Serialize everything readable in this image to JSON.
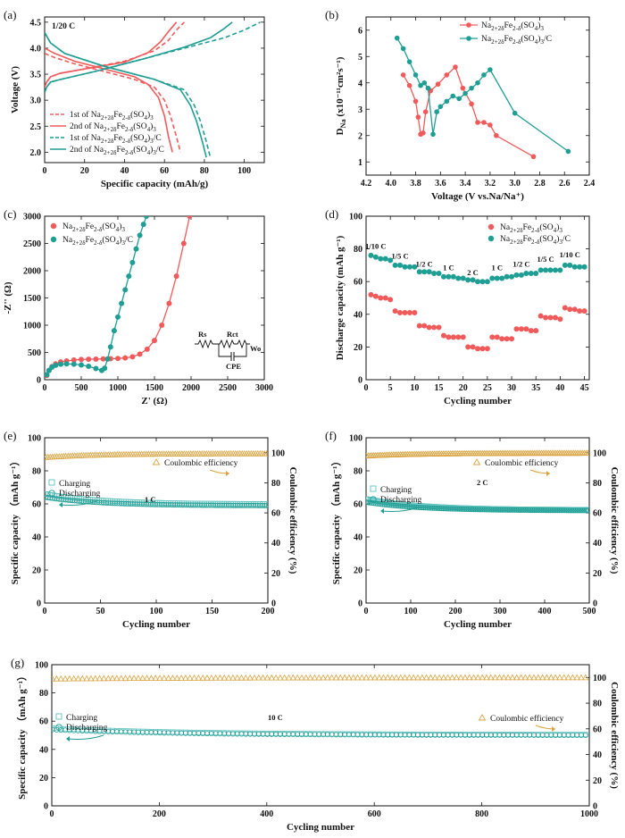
{
  "colors": {
    "red": "#f05a5a",
    "teal": "#1f9e94",
    "gold": "#d9a441",
    "lightteal": "#5fc2c0",
    "text": "#111111"
  },
  "chart_data": [
    {
      "id": "a",
      "panel_label": "(a)",
      "type": "line",
      "annotation": "1/20 C",
      "xlabel": "Specific capacity (mAh/g)",
      "ylabel": "Voltage (V)",
      "xlim": [
        0,
        110
      ],
      "ylim": [
        1.8,
        4.6
      ],
      "xticks": [
        0,
        20,
        40,
        60,
        80,
        100
      ],
      "yticks": [
        2.0,
        2.5,
        3.0,
        3.5,
        4.0,
        4.5
      ],
      "legend_position": "bottom-left",
      "series": [
        {
          "name": "1st of Na2+2δFe2-δ(SO4)3",
          "color": "#f05a5a",
          "dash": true,
          "legend": true,
          "x": [
            0,
            1,
            3,
            8,
            20,
            40,
            55,
            62,
            66,
            70
          ],
          "y": [
            3.25,
            3.35,
            3.45,
            3.52,
            3.6,
            3.75,
            3.95,
            4.15,
            4.35,
            4.5
          ]
        },
        {
          "name": "",
          "color": "#f05a5a",
          "dash": true,
          "legend": false,
          "x": [
            0,
            5,
            15,
            30,
            45,
            55,
            60,
            63,
            66,
            68
          ],
          "y": [
            3.9,
            3.82,
            3.7,
            3.55,
            3.4,
            3.25,
            3.0,
            2.7,
            2.3,
            2.0
          ]
        },
        {
          "name": "2nd of Na2+2δFe2-δ(SO4)3",
          "color": "#f05a5a",
          "dash": false,
          "legend": true,
          "x": [
            0,
            1,
            3,
            8,
            20,
            40,
            52,
            58,
            62,
            66
          ],
          "y": [
            3.25,
            3.35,
            3.45,
            3.52,
            3.6,
            3.73,
            3.92,
            4.12,
            4.32,
            4.5
          ]
        },
        {
          "name": "",
          "color": "#f05a5a",
          "dash": false,
          "legend": false,
          "x": [
            0,
            5,
            15,
            30,
            45,
            52,
            57,
            60,
            62,
            64
          ],
          "y": [
            4.0,
            3.9,
            3.75,
            3.6,
            3.45,
            3.3,
            3.05,
            2.7,
            2.3,
            2.0
          ]
        },
        {
          "name": "1st of Na2+2δFe2-δ(SO4)3/C",
          "color": "#1f9e94",
          "dash": true,
          "legend": true,
          "x": [
            0,
            1,
            3,
            8,
            25,
            50,
            75,
            90,
            100,
            108
          ],
          "y": [
            3.15,
            3.25,
            3.35,
            3.4,
            3.55,
            3.8,
            4.05,
            4.2,
            4.35,
            4.5
          ]
        },
        {
          "name": "",
          "color": "#1f9e94",
          "dash": true,
          "legend": false,
          "x": [
            0,
            3,
            10,
            30,
            55,
            70,
            75,
            78,
            81,
            83
          ],
          "y": [
            4.3,
            4.1,
            3.9,
            3.65,
            3.4,
            3.2,
            2.9,
            2.6,
            2.2,
            1.9
          ]
        },
        {
          "name": "2nd of Na2+2δFe2-δ(SO4)3/C",
          "color": "#1f9e94",
          "dash": false,
          "legend": true,
          "x": [
            0,
            1,
            3,
            8,
            25,
            50,
            70,
            83,
            90,
            94
          ],
          "y": [
            3.15,
            3.25,
            3.35,
            3.4,
            3.55,
            3.8,
            4.02,
            4.2,
            4.38,
            4.5
          ]
        },
        {
          "name": "",
          "color": "#1f9e94",
          "dash": false,
          "legend": false,
          "x": [
            0,
            3,
            10,
            30,
            55,
            68,
            73,
            76,
            79,
            81
          ],
          "y": [
            4.3,
            4.1,
            3.9,
            3.65,
            3.4,
            3.2,
            2.9,
            2.6,
            2.2,
            1.9
          ]
        }
      ]
    },
    {
      "id": "b",
      "panel_label": "(b)",
      "type": "line",
      "xlabel": "Voltage (V vs.Na/Na⁺)",
      "ylabel": "D_Na (x10⁻¹¹cm²s⁻¹)",
      "xlim": [
        4.2,
        2.4
      ],
      "ylim": [
        0.5,
        6.5
      ],
      "xticks": [
        4.2,
        4.0,
        3.8,
        3.6,
        3.4,
        3.2,
        3.0,
        2.8,
        2.6,
        2.4
      ],
      "yticks": [
        1,
        2,
        3,
        4,
        5,
        6
      ],
      "legend_position": "top-right",
      "markers": "circle",
      "series": [
        {
          "name": "Na2+2δFe2-δ(SO4)3",
          "color": "#f05a5a",
          "x": [
            3.9,
            3.85,
            3.8,
            3.78,
            3.76,
            3.74,
            3.72,
            3.68,
            3.62,
            3.55,
            3.48,
            3.42,
            3.35,
            3.3,
            3.25,
            3.2,
            3.15,
            2.85
          ],
          "y": [
            4.3,
            3.9,
            3.3,
            2.7,
            2.05,
            2.1,
            2.9,
            3.7,
            3.95,
            4.3,
            4.6,
            3.8,
            3.2,
            2.5,
            2.5,
            2.4,
            2.0,
            1.2
          ]
        },
        {
          "name": "Na2+2δFe2-δ(SO4)3/C",
          "color": "#1f9e94",
          "x": [
            3.95,
            3.9,
            3.85,
            3.8,
            3.76,
            3.73,
            3.7,
            3.66,
            3.63,
            3.6,
            3.55,
            3.5,
            3.45,
            3.4,
            3.35,
            3.3,
            3.25,
            3.2,
            3.0,
            2.57
          ],
          "y": [
            5.7,
            5.3,
            4.8,
            4.3,
            3.9,
            4.0,
            3.8,
            2.05,
            2.9,
            3.1,
            3.3,
            3.5,
            3.4,
            3.6,
            3.8,
            4.0,
            4.3,
            4.5,
            2.85,
            1.4
          ]
        }
      ]
    },
    {
      "id": "c",
      "panel_label": "(c)",
      "type": "scatter",
      "xlabel": "Z' (Ω)",
      "ylabel": "-Z'' (Ω)",
      "xlim": [
        0,
        3000
      ],
      "ylim": [
        0,
        3000
      ],
      "xticks": [
        0,
        500,
        1000,
        1500,
        2000,
        2500,
        3000
      ],
      "yticks": [
        0,
        500,
        1000,
        1500,
        2000,
        2500,
        3000
      ],
      "legend_position": "top-left",
      "markers": "circle",
      "circuit_labels": {
        "rs": "Rs",
        "rct": "Rct",
        "cpe": "CPE",
        "wo": "Wo"
      },
      "series": [
        {
          "name": "Na2+2δFe2-δ(SO4)3",
          "color": "#f05a5a",
          "x": [
            30,
            60,
            100,
            150,
            220,
            300,
            400,
            500,
            600,
            700,
            800,
            900,
            1000,
            1100,
            1200,
            1300,
            1400,
            1500,
            1600,
            1700,
            1800,
            1900,
            1980
          ],
          "y": [
            80,
            170,
            240,
            290,
            325,
            345,
            360,
            370,
            375,
            378,
            382,
            385,
            390,
            400,
            420,
            470,
            560,
            720,
            1000,
            1400,
            1900,
            2500,
            3000
          ]
        },
        {
          "name": "Na2+2δFe2-δ(SO4)3/C",
          "color": "#1f9e94",
          "x": [
            30,
            60,
            100,
            150,
            220,
            300,
            400,
            500,
            600,
            700,
            780,
            820,
            860,
            900,
            950,
            1000,
            1050,
            1100,
            1150,
            1200,
            1250,
            1300,
            1350,
            1390
          ],
          "y": [
            90,
            170,
            230,
            265,
            285,
            290,
            285,
            270,
            245,
            205,
            170,
            210,
            380,
            600,
            900,
            1150,
            1400,
            1650,
            1900,
            2150,
            2400,
            2650,
            2850,
            3000
          ]
        }
      ]
    },
    {
      "id": "d",
      "panel_label": "(d)",
      "type": "scatter",
      "xlabel": "Cycling number",
      "ylabel": "Discharge capacity (mAh g⁻¹)",
      "xlim": [
        0,
        46
      ],
      "ylim": [
        0,
        100
      ],
      "xticks": [
        0,
        5,
        10,
        15,
        20,
        25,
        30,
        35,
        40,
        45
      ],
      "yticks": [
        0,
        20,
        40,
        60,
        80,
        100
      ],
      "legend_position": "top-right",
      "markers": "circle",
      "rate_labels": [
        {
          "text": "1/10 C",
          "x": 2,
          "y": 80
        },
        {
          "text": "1/5 C",
          "x": 7,
          "y": 74
        },
        {
          "text": "1/2 C",
          "x": 12,
          "y": 69
        },
        {
          "text": "1 C",
          "x": 17,
          "y": 67
        },
        {
          "text": "2 C",
          "x": 22,
          "y": 64
        },
        {
          "text": "1 C",
          "x": 27,
          "y": 67
        },
        {
          "text": "1/2 C",
          "x": 32,
          "y": 69
        },
        {
          "text": "1/5 C",
          "x": 37,
          "y": 72
        },
        {
          "text": "1/10 C",
          "x": 42,
          "y": 75
        }
      ],
      "series": [
        {
          "name": "Na2+2δFe2-δ(SO4)3",
          "color": "#f05a5a",
          "x": [
            1,
            2,
            3,
            4,
            5,
            6,
            7,
            8,
            9,
            10,
            11,
            12,
            13,
            14,
            15,
            16,
            17,
            18,
            19,
            20,
            21,
            22,
            23,
            24,
            25,
            26,
            27,
            28,
            29,
            30,
            31,
            32,
            33,
            34,
            35,
            36,
            37,
            38,
            39,
            40,
            41,
            42,
            43,
            44,
            45
          ],
          "y": [
            52,
            51,
            50,
            50,
            49,
            42,
            41,
            41,
            41,
            41,
            33,
            33,
            32,
            32,
            32,
            27,
            26,
            26,
            26,
            26,
            20,
            20,
            19,
            19,
            19,
            26,
            26,
            25,
            25,
            25,
            31,
            31,
            31,
            30,
            30,
            39,
            38,
            38,
            38,
            37,
            44,
            43,
            43,
            42,
            42
          ]
        },
        {
          "name": "Na2+2δFe2-δ(SO4)3/C",
          "color": "#1f9e94",
          "x": [
            1,
            2,
            3,
            4,
            5,
            6,
            7,
            8,
            9,
            10,
            11,
            12,
            13,
            14,
            15,
            16,
            17,
            18,
            19,
            20,
            21,
            22,
            23,
            24,
            25,
            26,
            27,
            28,
            29,
            30,
            31,
            32,
            33,
            34,
            35,
            36,
            37,
            38,
            39,
            40,
            41,
            42,
            43,
            44,
            45
          ],
          "y": [
            76,
            75,
            74,
            74,
            73,
            70,
            70,
            69,
            69,
            69,
            66,
            66,
            66,
            65,
            65,
            63,
            63,
            63,
            62,
            62,
            61,
            61,
            60,
            60,
            60,
            62,
            62,
            62,
            63,
            63,
            64,
            64,
            65,
            65,
            65,
            67,
            67,
            67,
            67,
            67,
            70,
            70,
            69,
            69,
            69
          ]
        }
      ]
    },
    {
      "id": "e",
      "panel_label": "(e)",
      "type": "scatter",
      "rate_note": "1 C",
      "xlabel": "Cycling number",
      "ylabel": "Specific capacity （mAh g⁻¹）",
      "y2label": "Coulombic efficiency (%)",
      "xlim": [
        0,
        200
      ],
      "ylim": [
        0,
        100
      ],
      "y2lim": [
        0,
        110
      ],
      "xticks": [
        0,
        50,
        100,
        150,
        200
      ],
      "yticks": [
        0,
        20,
        40,
        60,
        80,
        100
      ],
      "y2ticks": [
        0,
        20,
        40,
        60,
        80,
        100
      ],
      "legend": {
        "ce": "Coulombic efficiency",
        "charging": "Charging",
        "discharging": "Discharging"
      },
      "series": [
        {
          "name": "Charging",
          "kind": "charge",
          "marker": "square",
          "color": "#5fc2c0",
          "start": 66,
          "end": 60,
          "ncycles": 200
        },
        {
          "name": "Discharging",
          "kind": "discharge",
          "marker": "circle",
          "color": "#1f9e94",
          "start": 64,
          "end": 59,
          "ncycles": 200
        },
        {
          "name": "Coulombic efficiency",
          "kind": "ce",
          "marker": "triangle",
          "color": "#d9a441",
          "start": 97,
          "end": 99.5,
          "ncycles": 200,
          "axis": "right"
        }
      ]
    },
    {
      "id": "f",
      "panel_label": "(f)",
      "type": "scatter",
      "rate_note": "2 C",
      "xlabel": "Cycling number",
      "ylabel": "Specific capacity （mAh g⁻¹）",
      "y2label": "Coulombic efficiency (%)",
      "xlim": [
        0,
        500
      ],
      "ylim": [
        0,
        100
      ],
      "y2lim": [
        0,
        110
      ],
      "xticks": [
        0,
        100,
        200,
        300,
        400,
        500
      ],
      "yticks": [
        0,
        20,
        40,
        60,
        80,
        100
      ],
      "y2ticks": [
        0,
        20,
        40,
        60,
        80,
        100
      ],
      "legend": {
        "ce": "Coulombic efficiency",
        "charging": "Charging",
        "discharging": "Discharging"
      },
      "series": [
        {
          "name": "Charging",
          "kind": "charge",
          "marker": "square",
          "color": "#5fc2c0",
          "start": 63,
          "end": 56.5,
          "ncycles": 500
        },
        {
          "name": "Discharging",
          "kind": "discharge",
          "marker": "circle",
          "color": "#1f9e94",
          "start": 61,
          "end": 56,
          "ncycles": 500
        },
        {
          "name": "Coulombic efficiency",
          "kind": "ce",
          "marker": "triangle",
          "color": "#d9a441",
          "start": 98,
          "end": 99.8,
          "ncycles": 500,
          "axis": "right"
        }
      ]
    },
    {
      "id": "g",
      "panel_label": "(g)",
      "type": "scatter",
      "rate_note": "10 C",
      "xlabel": "Cycling number",
      "ylabel": "Specific capacity （mAh g⁻¹）",
      "y2label": "Coulombic efficiency (%)",
      "xlim": [
        0,
        1000
      ],
      "ylim": [
        0,
        100
      ],
      "y2lim": [
        0,
        110
      ],
      "xticks": [
        0,
        200,
        400,
        600,
        800,
        1000
      ],
      "yticks": [
        0,
        20,
        40,
        60,
        80,
        100
      ],
      "y2ticks": [
        0,
        20,
        40,
        60,
        80,
        100
      ],
      "legend": {
        "ce": "Coulombic efficiency",
        "charging": "Charging",
        "discharging": "Discharging"
      },
      "series": [
        {
          "name": "Charging",
          "kind": "charge",
          "marker": "square",
          "color": "#5fc2c0",
          "start": 55,
          "end": 50.5,
          "ncycles": 1000
        },
        {
          "name": "Discharging",
          "kind": "discharge",
          "marker": "circle",
          "color": "#1f9e94",
          "start": 54,
          "end": 50,
          "ncycles": 1000
        },
        {
          "name": "Coulombic efficiency",
          "kind": "ce",
          "marker": "triangle",
          "color": "#d9a441",
          "start": 99,
          "end": 100,
          "ncycles": 1000,
          "axis": "right"
        }
      ]
    }
  ]
}
